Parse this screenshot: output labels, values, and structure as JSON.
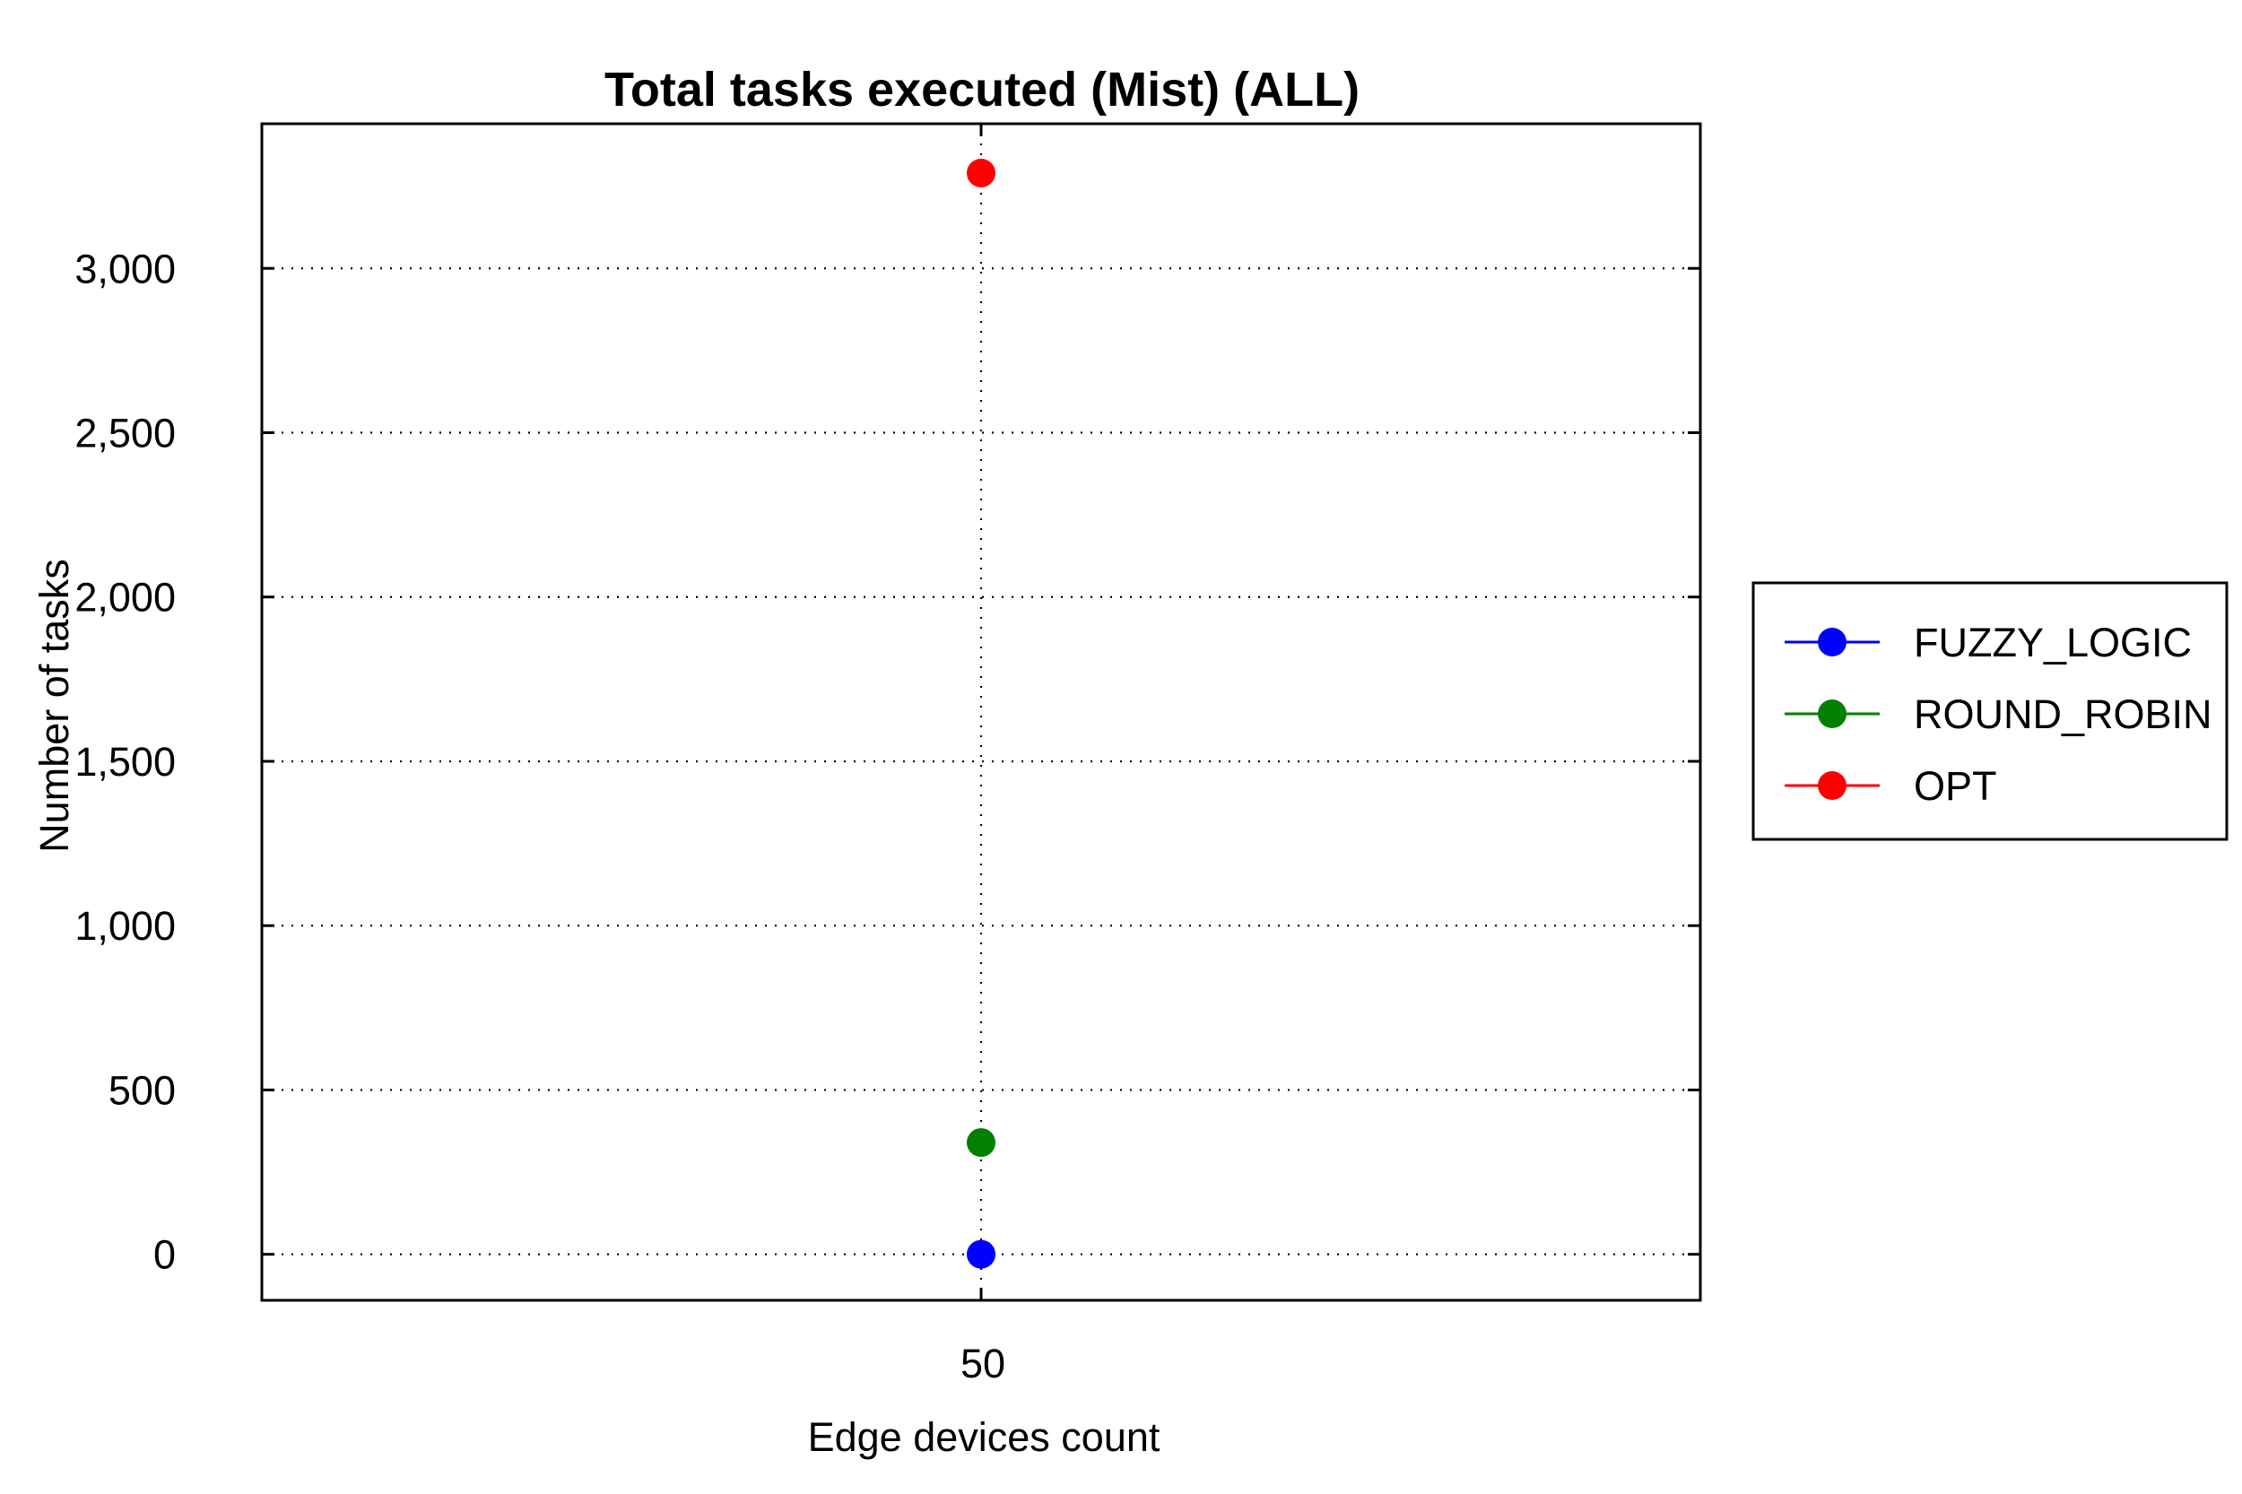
{
  "chart_data": {
    "type": "scatter",
    "title": "Total tasks executed (Mist) (ALL)",
    "xlabel": "Edge devices count",
    "ylabel": "Number of tasks",
    "categories": [
      "50"
    ],
    "yticks": [
      0,
      500,
      1000,
      1500,
      2000,
      2500,
      3000
    ],
    "ytick_labels": [
      "0",
      "500",
      "1,000",
      "1,500",
      "2,000",
      "2,500",
      "3,000"
    ],
    "ylim": [
      -140,
      3440
    ],
    "grid": true,
    "legend_position": "right",
    "series": [
      {
        "name": "FUZZY_LOGIC",
        "color": "#0000ff",
        "values": [
          0
        ]
      },
      {
        "name": " ROUND_ROBIN",
        "color": "#007f00",
        "values": [
          340
        ]
      },
      {
        "name": "OPT",
        "color": "#ff0000",
        "values": [
          3290
        ]
      }
    ]
  }
}
